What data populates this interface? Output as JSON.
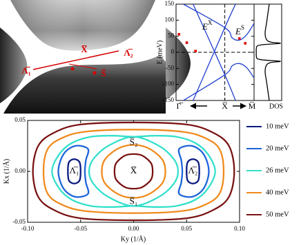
{
  "chart_data": [
    {
      "type": "surface",
      "labels": [
        "Λ̅₁",
        "X̅",
        "Λ̅₂",
        "S̅"
      ],
      "color": "#d40000"
    },
    {
      "type": "line",
      "ylabel": "E (meV)",
      "xlim": [
        0,
        1.6
      ],
      "xticks": [
        {
          "value": 0,
          "label": "Γ̅"
        },
        {
          "value": 1,
          "label": "X̅"
        },
        {
          "value": 1.6,
          "label": "M̅"
        }
      ],
      "ylim": [
        -150,
        150
      ],
      "yticks": [
        -150,
        -100,
        -50,
        0,
        50,
        100,
        150
      ],
      "vlines": [
        1
      ],
      "hlines": [
        0
      ],
      "annotations": [
        {
          "text": "E",
          "sup": "X"
        },
        {
          "text": "E",
          "sup": "S"
        }
      ],
      "series": [
        {
          "color": "#1f3fd0",
          "x": [
            0.15,
            1,
            1.15,
            1.3,
            1.45,
            1.6
          ],
          "y": [
            150,
            77,
            45,
            38,
            55,
            90
          ]
        },
        {
          "color": "#1f3fd0",
          "x": [
            0.35,
            1,
            1.22
          ],
          "y": [
            -150,
            77,
            150
          ]
        },
        {
          "color": "#1f3fd0",
          "x": [
            0.35,
            1,
            1.22
          ],
          "y": [
            150,
            -70,
            -150
          ]
        },
        {
          "color": "#1f3fd0",
          "x": [
            0.15,
            1,
            1.15,
            1.3,
            1.45,
            1.6
          ],
          "y": [
            -150,
            -70,
            -42,
            -35,
            -48,
            -80
          ]
        },
        {
          "color": "#e00000",
          "mode": "markers",
          "x": [
            0.06,
            0.22,
            0.4,
            1.3,
            1.42
          ],
          "y": [
            56,
            30,
            4,
            43,
            28
          ]
        }
      ]
    },
    {
      "type": "line",
      "xlabel": "DOS",
      "xlim": [
        0,
        1
      ],
      "ylim": [
        -150,
        150
      ],
      "series": [
        {
          "color": "#000000",
          "x": [
            0.55,
            0.5,
            0.45,
            0.4,
            0.45,
            0.6,
            0.95,
            0.35,
            0.12,
            0.08,
            0.08,
            0.08,
            0.12,
            0.35,
            0.95,
            0.6,
            0.45,
            0.4,
            0.45,
            0.5,
            0.55
          ],
          "y": [
            150,
            120,
            90,
            60,
            40,
            32,
            28,
            24,
            20,
            10,
            0,
            -10,
            -20,
            -24,
            -28,
            -32,
            -40,
            -60,
            -90,
            -120,
            -150
          ]
        }
      ]
    },
    {
      "type": "contour",
      "xlabel": "Ky (1/Å)",
      "ylabel": "Kx (1/Å)",
      "xlim": [
        -0.1,
        0.1
      ],
      "xticks": [
        {
          "value": -0.1,
          "label": "-0.10"
        },
        -0.05,
        {
          "value": 0,
          "label": "0.00"
        },
        0.05,
        {
          "value": 0.1,
          "label": "0.10"
        }
      ],
      "ylim": [
        -0.05,
        0.05
      ],
      "yticks": [
        -0.05,
        {
          "value": 0,
          "label": "0.00"
        },
        0.05
      ],
      "annotations": [
        "Λ̅₁",
        "Λ̅₂",
        "X̅",
        "S̅₂",
        "S̅₁"
      ],
      "series": [
        {
          "name": "10 meV",
          "color": "#0a1a80",
          "x": [
            -0.05,
            -0.051,
            -0.056,
            -0.061,
            -0.062,
            -0.061,
            -0.056,
            -0.051,
            -0.05,
            null,
            0.05,
            0.051,
            0.056,
            0.061,
            0.062,
            0.061,
            0.056,
            0.051,
            0.05
          ],
          "y": [
            0,
            0.009,
            0.012,
            0.009,
            0,
            -0.009,
            -0.012,
            -0.009,
            0,
            null,
            0,
            0.009,
            0.012,
            0.009,
            0,
            -0.009,
            -0.012,
            -0.009,
            0
          ]
        },
        {
          "name": "20 meV",
          "color": "#1e64d8",
          "x": [
            -0.043,
            -0.055,
            -0.066,
            -0.071,
            -0.066,
            -0.055,
            -0.043,
            -0.045,
            -0.046,
            -0.045,
            -0.043,
            null,
            0.043,
            0.055,
            0.066,
            0.071,
            0.066,
            0.055,
            0.043,
            0.045,
            0.046,
            0.045,
            0.043
          ],
          "y": [
            0.022,
            0.025,
            0.017,
            0,
            -0.017,
            -0.025,
            -0.022,
            -0.011,
            0,
            0.011,
            0.022,
            null,
            0.022,
            0.025,
            0.017,
            0,
            -0.017,
            -0.025,
            -0.022,
            -0.011,
            0,
            0.011,
            0.022
          ]
        },
        {
          "name": "26 meV",
          "color": "#33e0cc",
          "x": [
            0,
            -0.02,
            -0.04,
            -0.058,
            -0.07,
            -0.077,
            -0.07,
            -0.058,
            -0.04,
            -0.02,
            0,
            0.02,
            0.04,
            0.058,
            0.07,
            0.077,
            0.07,
            0.058,
            0.04,
            0.02,
            0,
            null,
            0,
            -0.024,
            -0.038,
            -0.042,
            -0.038,
            -0.024,
            0,
            0.024,
            0.038,
            0.042,
            0.038,
            0.024,
            0
          ],
          "y": [
            0.034,
            0.035,
            0.034,
            0.028,
            0.017,
            0,
            -0.017,
            -0.028,
            -0.034,
            -0.035,
            -0.034,
            -0.035,
            -0.034,
            -0.028,
            -0.017,
            0,
            0.017,
            0.028,
            0.034,
            0.035,
            0.034,
            null,
            0.034,
            0.025,
            0.012,
            0,
            -0.012,
            -0.025,
            -0.034,
            -0.025,
            -0.012,
            0,
            0.012,
            0.025,
            0.034
          ]
        },
        {
          "name": "40 meV",
          "color": "#f08a1c",
          "x": [
            0.085,
            0.081,
            0.067,
            0.045,
            0,
            -0.045,
            -0.067,
            -0.081,
            -0.085,
            -0.081,
            -0.067,
            -0.045,
            0,
            0.045,
            0.067,
            0.081,
            0.085,
            null,
            0.03,
            0.028,
            0.021,
            0.011,
            0,
            -0.011,
            -0.021,
            -0.028,
            -0.03,
            -0.028,
            -0.021,
            -0.011,
            0,
            0.011,
            0.021,
            0.028,
            0.03
          ],
          "y": [
            0,
            0.022,
            0.033,
            0.039,
            0.041,
            0.039,
            0.033,
            0.022,
            0,
            -0.022,
            -0.033,
            -0.039,
            -0.041,
            -0.039,
            -0.033,
            -0.022,
            0,
            null,
            0,
            0.01,
            0.018,
            0.024,
            0.026,
            0.024,
            0.018,
            0.01,
            0,
            -0.01,
            -0.018,
            -0.024,
            -0.026,
            -0.024,
            -0.018,
            -0.01,
            0
          ]
        },
        {
          "name": "50 meV",
          "color": "#7a1212",
          "x": [
            0.095,
            0.09,
            0.075,
            0.05,
            0,
            -0.05,
            -0.075,
            -0.09,
            -0.095,
            -0.09,
            -0.075,
            -0.05,
            0,
            0.05,
            0.075,
            0.09,
            0.095,
            null,
            0.018,
            0.017,
            0.013,
            0.007,
            0,
            -0.007,
            -0.013,
            -0.017,
            -0.018,
            -0.017,
            -0.013,
            -0.007,
            0,
            0.007,
            0.013,
            0.017,
            0.018
          ],
          "y": [
            0,
            0.025,
            0.038,
            0.046,
            0.048,
            0.046,
            0.038,
            0.025,
            0,
            -0.025,
            -0.038,
            -0.046,
            -0.048,
            -0.046,
            -0.038,
            -0.025,
            0,
            null,
            0,
            0.007,
            0.012,
            0.016,
            0.017,
            0.016,
            0.012,
            0.007,
            0,
            -0.007,
            -0.012,
            -0.016,
            -0.017,
            -0.016,
            -0.012,
            -0.007,
            0
          ]
        }
      ]
    }
  ]
}
